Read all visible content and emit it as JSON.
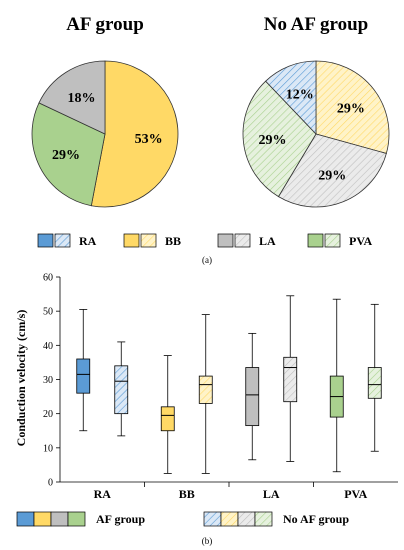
{
  "colors": {
    "RA": "#5b9bd5",
    "BB": "#ffd966",
    "LA": "#bfbfbf",
    "PVA": "#a9d18e",
    "RA_light": "#dbe8f6",
    "BB_light": "#fff3c8",
    "LA_light": "#ebebeb",
    "PVA_light": "#e6f1de"
  },
  "panel_a": {
    "caption": "(a)",
    "legend": [
      "RA",
      "BB",
      "LA",
      "PVA"
    ]
  },
  "panel_b": {
    "caption": "(b)",
    "legend_af": "AF group",
    "legend_noaf": "No AF group"
  },
  "chart_data": [
    {
      "type": "pie",
      "title": "AF group",
      "start_angle_deg": 0,
      "slices": [
        {
          "name": "RA",
          "value": 0,
          "label": ""
        },
        {
          "name": "BB",
          "value": 53,
          "label": "53%"
        },
        {
          "name": "PVA",
          "value": 29,
          "label": "29%"
        },
        {
          "name": "LA",
          "value": 18,
          "label": "18%"
        }
      ]
    },
    {
      "type": "pie",
      "title": "No AF group",
      "start_angle_deg": 0,
      "slices": [
        {
          "name": "BB",
          "value": 29,
          "label": "29%"
        },
        {
          "name": "LA",
          "value": 29,
          "label": "29%"
        },
        {
          "name": "PVA",
          "value": 29,
          "label": "29%"
        },
        {
          "name": "RA",
          "value": 12,
          "label": "12%"
        }
      ]
    },
    {
      "type": "boxplot",
      "title": "",
      "ylabel": "Conduction velocity (cm/s)",
      "ylim": [
        0,
        60
      ],
      "yticks": [
        0,
        10,
        20,
        30,
        40,
        50,
        60
      ],
      "categories": [
        "RA",
        "BB",
        "LA",
        "PVA"
      ],
      "series": [
        {
          "name": "AF group",
          "boxes": [
            {
              "min": 15,
              "q1": 26,
              "median": 31.5,
              "q3": 36,
              "max": 50.5
            },
            {
              "min": 2.5,
              "q1": 15,
              "median": 19.5,
              "q3": 22,
              "max": 37
            },
            {
              "min": 6.5,
              "q1": 16.5,
              "median": 25.5,
              "q3": 33.5,
              "max": 43.5
            },
            {
              "min": 3,
              "q1": 19,
              "median": 25,
              "q3": 31,
              "max": 53.5
            }
          ]
        },
        {
          "name": "No AF group",
          "boxes": [
            {
              "min": 13.5,
              "q1": 20,
              "median": 29.5,
              "q3": 34,
              "max": 41
            },
            {
              "min": 2.5,
              "q1": 23,
              "median": 28.5,
              "q3": 31,
              "max": 49
            },
            {
              "min": 6,
              "q1": 23.5,
              "median": 33.5,
              "q3": 36.5,
              "max": 54.5
            },
            {
              "min": 9,
              "q1": 24.5,
              "median": 28.5,
              "q3": 33.5,
              "max": 52
            }
          ]
        }
      ]
    }
  ]
}
